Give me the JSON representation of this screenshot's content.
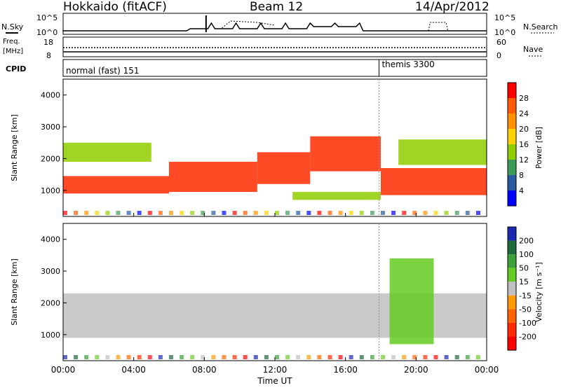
{
  "header": {
    "station": "Hokkaido (fitACF)",
    "beam": "Beam 12",
    "date": "14/Apr/2012"
  },
  "summary": {
    "nsky_label": "N.Sky",
    "nsky_ticks": [
      "10^5",
      "10^0"
    ],
    "nsearch_label": "N.Search",
    "freq_label_1": "Freq.",
    "freq_label_2": "[MHz]",
    "freq_ticks": [
      "18",
      "8"
    ],
    "nave_label": "Nave",
    "nave_ticks": [
      "60",
      "0"
    ],
    "cpid_label": "CPID",
    "cpid_segments": [
      "normal (fast) 151",
      "themis 3300"
    ]
  },
  "power_scale": {
    "label": "Power [dB]",
    "ticks": [
      "28",
      "24",
      "20",
      "16",
      "12",
      "8",
      "4"
    ],
    "colors": [
      "#ff0000",
      "#ff5a00",
      "#ff9000",
      "#ffd000",
      "#8fce00",
      "#3a9a58",
      "#2a5aa0",
      "#0000ff"
    ]
  },
  "velocity_scale": {
    "label": "Velocity [m s⁻¹]",
    "ticks": [
      "200",
      "100",
      "50",
      "15",
      "-15",
      "-50",
      "-100",
      "-200"
    ],
    "colors": [
      "#1a2ab0",
      "#1e6a3a",
      "#3aa03a",
      "#66cc22",
      "#c0c0c0",
      "#ff9a00",
      "#ff6400",
      "#ff2a00",
      "#ff0000"
    ]
  },
  "chart_data": {
    "type": "heatmap",
    "x_ticks": [
      "00:00",
      "04:00",
      "08:00",
      "12:00",
      "16:00",
      "20:00",
      "00:00"
    ],
    "xlabel": "Time UT",
    "ylabel": "Slant Range [km]",
    "y_ticks": [
      "4000",
      "3000",
      "2000",
      "1000"
    ],
    "xlim_hours": [
      0,
      24
    ],
    "ylim_km": [
      180,
      4500
    ],
    "cpid_change_hour": 17.9,
    "power_bands": [
      {
        "t0": 0,
        "t1": 6,
        "r0": 900,
        "r1": 1450,
        "level": "high"
      },
      {
        "t0": 6,
        "t1": 11,
        "r0": 950,
        "r1": 1900,
        "level": "high"
      },
      {
        "t0": 11,
        "t1": 14,
        "r0": 1200,
        "r1": 2200,
        "level": "high"
      },
      {
        "t0": 14,
        "t1": 18,
        "r0": 1600,
        "r1": 2700,
        "level": "high"
      },
      {
        "t0": 18,
        "t1": 24,
        "r0": 850,
        "r1": 1700,
        "level": "high"
      },
      {
        "t0": 0,
        "t1": 5,
        "r0": 1900,
        "r1": 2500,
        "level": "medium"
      },
      {
        "t0": 13,
        "t1": 18,
        "r0": 700,
        "r1": 950,
        "level": "medium"
      },
      {
        "t0": 19,
        "t1": 24,
        "r0": 1800,
        "r1": 2600,
        "level": "medium"
      }
    ],
    "velocity_bands": [
      {
        "t0": 0,
        "t1": 24,
        "r0": 900,
        "r1": 2300,
        "class": "-15 to 15"
      },
      {
        "t0": 18.5,
        "t1": 21,
        "r0": 700,
        "r1": 3400,
        "class": "15 to 50"
      }
    ]
  }
}
